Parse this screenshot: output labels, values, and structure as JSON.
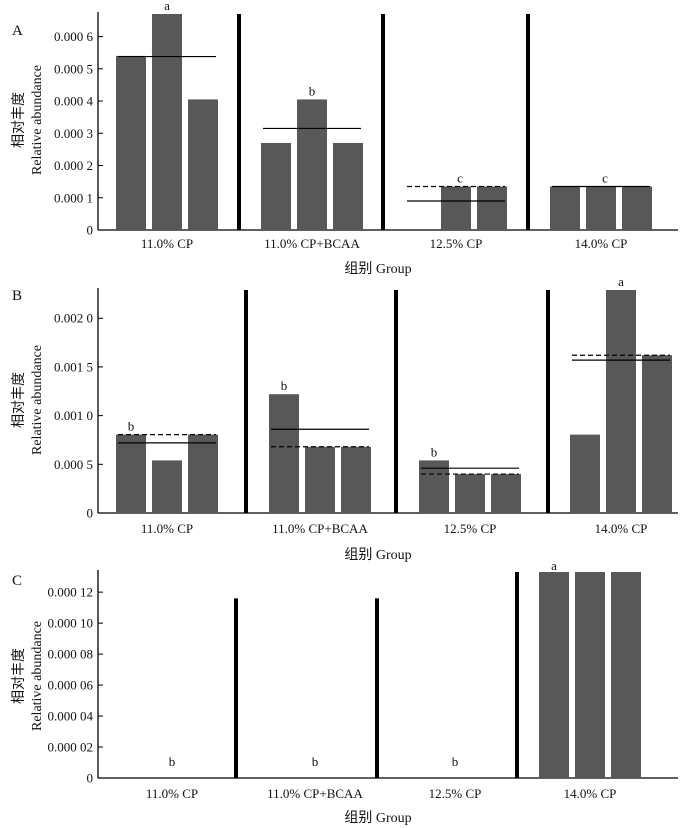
{
  "chart_data": [
    {
      "type": "bar",
      "panel": "A",
      "xlabel": "组别 Group",
      "ylabel_cn": "相对丰度",
      "ylabel_en": "Relative abundance",
      "ylim": [
        0,
        0.00067
      ],
      "yticks": [
        "0",
        "0.000 1",
        "0.000 2",
        "0.000 3",
        "0.000 4",
        "0.000 5",
        "0.000 6"
      ],
      "ytick_values": [
        0,
        0.0001,
        0.0002,
        0.0003,
        0.0004,
        0.0005,
        0.0006
      ],
      "groups": [
        {
          "label": "11.0% CP",
          "values": [
            0.00054,
            0.00067,
            0.000405
          ],
          "mean": 0.000538,
          "median": null,
          "sig": "a"
        },
        {
          "label": "11.0% CP+BCAA",
          "values": [
            0.00027,
            0.000405,
            0.00027
          ],
          "mean": 0.000315,
          "median": null,
          "sig": "b"
        },
        {
          "label": "12.5% CP",
          "values": [
            0,
            0.000135,
            0.000135
          ],
          "mean": 9e-05,
          "median": 0.000135,
          "sig": "c"
        },
        {
          "label": "14.0% CP",
          "values": [
            0.000135,
            0.000135,
            0.000135
          ],
          "mean": 0.000135,
          "median": null,
          "sig": "c"
        }
      ]
    },
    {
      "type": "bar",
      "panel": "B",
      "xlabel": "组别 Group",
      "ylabel_cn": "相对丰度",
      "ylabel_en": "Relative abundance",
      "ylim": [
        0,
        0.00229
      ],
      "yticks": [
        "0",
        "0.000 5",
        "0.001 0",
        "0.001 5",
        "0.002 0"
      ],
      "ytick_values": [
        0,
        0.0005,
        0.001,
        0.0015,
        0.002
      ],
      "groups": [
        {
          "label": "11.0% CP",
          "values": [
            0.000805,
            0.00054,
            0.000805
          ],
          "mean": 0.00072,
          "median": 0.000805,
          "sig": "b"
        },
        {
          "label": "11.0% CP+BCAA",
          "values": [
            0.00122,
            0.00068,
            0.00068
          ],
          "mean": 0.00086,
          "median": 0.00068,
          "sig": "b"
        },
        {
          "label": "12.5% CP",
          "values": [
            0.00054,
            0.0004,
            0.0004
          ],
          "mean": 0.00046,
          "median": 0.0004,
          "sig": "b"
        },
        {
          "label": "14.0% CP",
          "values": [
            0.000805,
            0.00229,
            0.00162
          ],
          "mean": 0.00157,
          "median": 0.00162,
          "sig": "a"
        }
      ]
    },
    {
      "type": "bar",
      "panel": "C",
      "xlabel": "组别 Group",
      "ylabel_cn": "相对丰度",
      "ylabel_en": "Relative abundance",
      "ylim": [
        0,
        0.000133
      ],
      "yticks": [
        "0",
        "0.000 02",
        "0.000 04",
        "0.000 06",
        "0.000 08",
        "0.000 10",
        "0.000 12"
      ],
      "ytick_values": [
        0,
        2e-05,
        4e-05,
        6e-05,
        8e-05,
        0.0001,
        0.00012
      ],
      "groups": [
        {
          "label": "11.0% CP",
          "values": [
            0,
            0,
            0
          ],
          "mean": null,
          "median": null,
          "sig": "b"
        },
        {
          "label": "11.0% CP+BCAA",
          "values": [
            0,
            0,
            0
          ],
          "mean": null,
          "median": null,
          "sig": "b"
        },
        {
          "label": "12.5% CP",
          "values": [
            0,
            0,
            0
          ],
          "mean": null,
          "median": null,
          "sig": "b"
        },
        {
          "label": "14.0% CP",
          "values": [
            0.000133,
            0.000133,
            0.000133
          ],
          "mean": null,
          "median": null,
          "sig": "a"
        }
      ]
    }
  ],
  "colors": {
    "bar": "#585858",
    "axis": "#000000",
    "separator": "#000000"
  }
}
